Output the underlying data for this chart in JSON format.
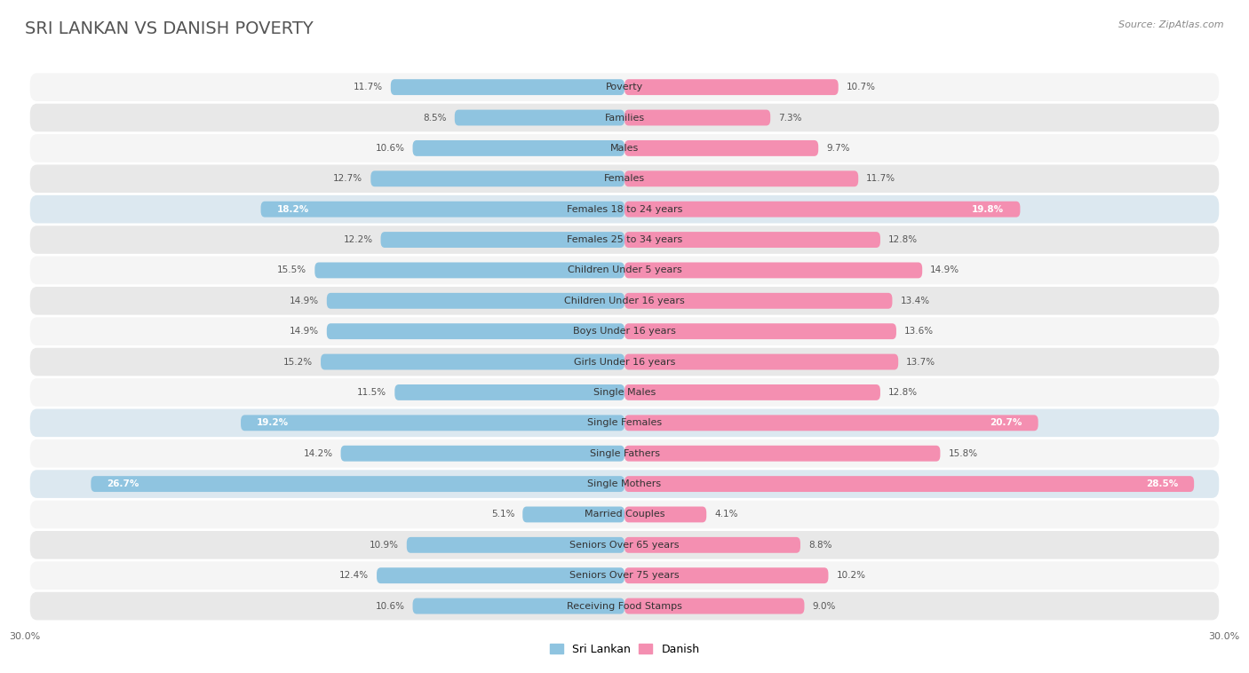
{
  "title": "SRI LANKAN VS DANISH POVERTY",
  "source": "Source: ZipAtlas.com",
  "categories": [
    "Poverty",
    "Families",
    "Males",
    "Females",
    "Females 18 to 24 years",
    "Females 25 to 34 years",
    "Children Under 5 years",
    "Children Under 16 years",
    "Boys Under 16 years",
    "Girls Under 16 years",
    "Single Males",
    "Single Females",
    "Single Fathers",
    "Single Mothers",
    "Married Couples",
    "Seniors Over 65 years",
    "Seniors Over 75 years",
    "Receiving Food Stamps"
  ],
  "sri_lankan": [
    11.7,
    8.5,
    10.6,
    12.7,
    18.2,
    12.2,
    15.5,
    14.9,
    14.9,
    15.2,
    11.5,
    19.2,
    14.2,
    26.7,
    5.1,
    10.9,
    12.4,
    10.6
  ],
  "danish": [
    10.7,
    7.3,
    9.7,
    11.7,
    19.8,
    12.8,
    14.9,
    13.4,
    13.6,
    13.7,
    12.8,
    20.7,
    15.8,
    28.5,
    4.1,
    8.8,
    10.2,
    9.0
  ],
  "sri_lankan_color": "#8fc4e0",
  "danish_color": "#f48fb1",
  "bg_color": "#ffffff",
  "row_bg_even": "#f5f5f5",
  "row_bg_odd": "#e8e8e8",
  "highlight_rows": [
    4,
    11,
    13
  ],
  "axis_max": 30.0,
  "bar_height": 0.52,
  "title_fontsize": 14,
  "label_fontsize": 8,
  "value_fontsize": 7.5,
  "legend_fontsize": 9,
  "source_fontsize": 8,
  "tick_fontsize": 8
}
